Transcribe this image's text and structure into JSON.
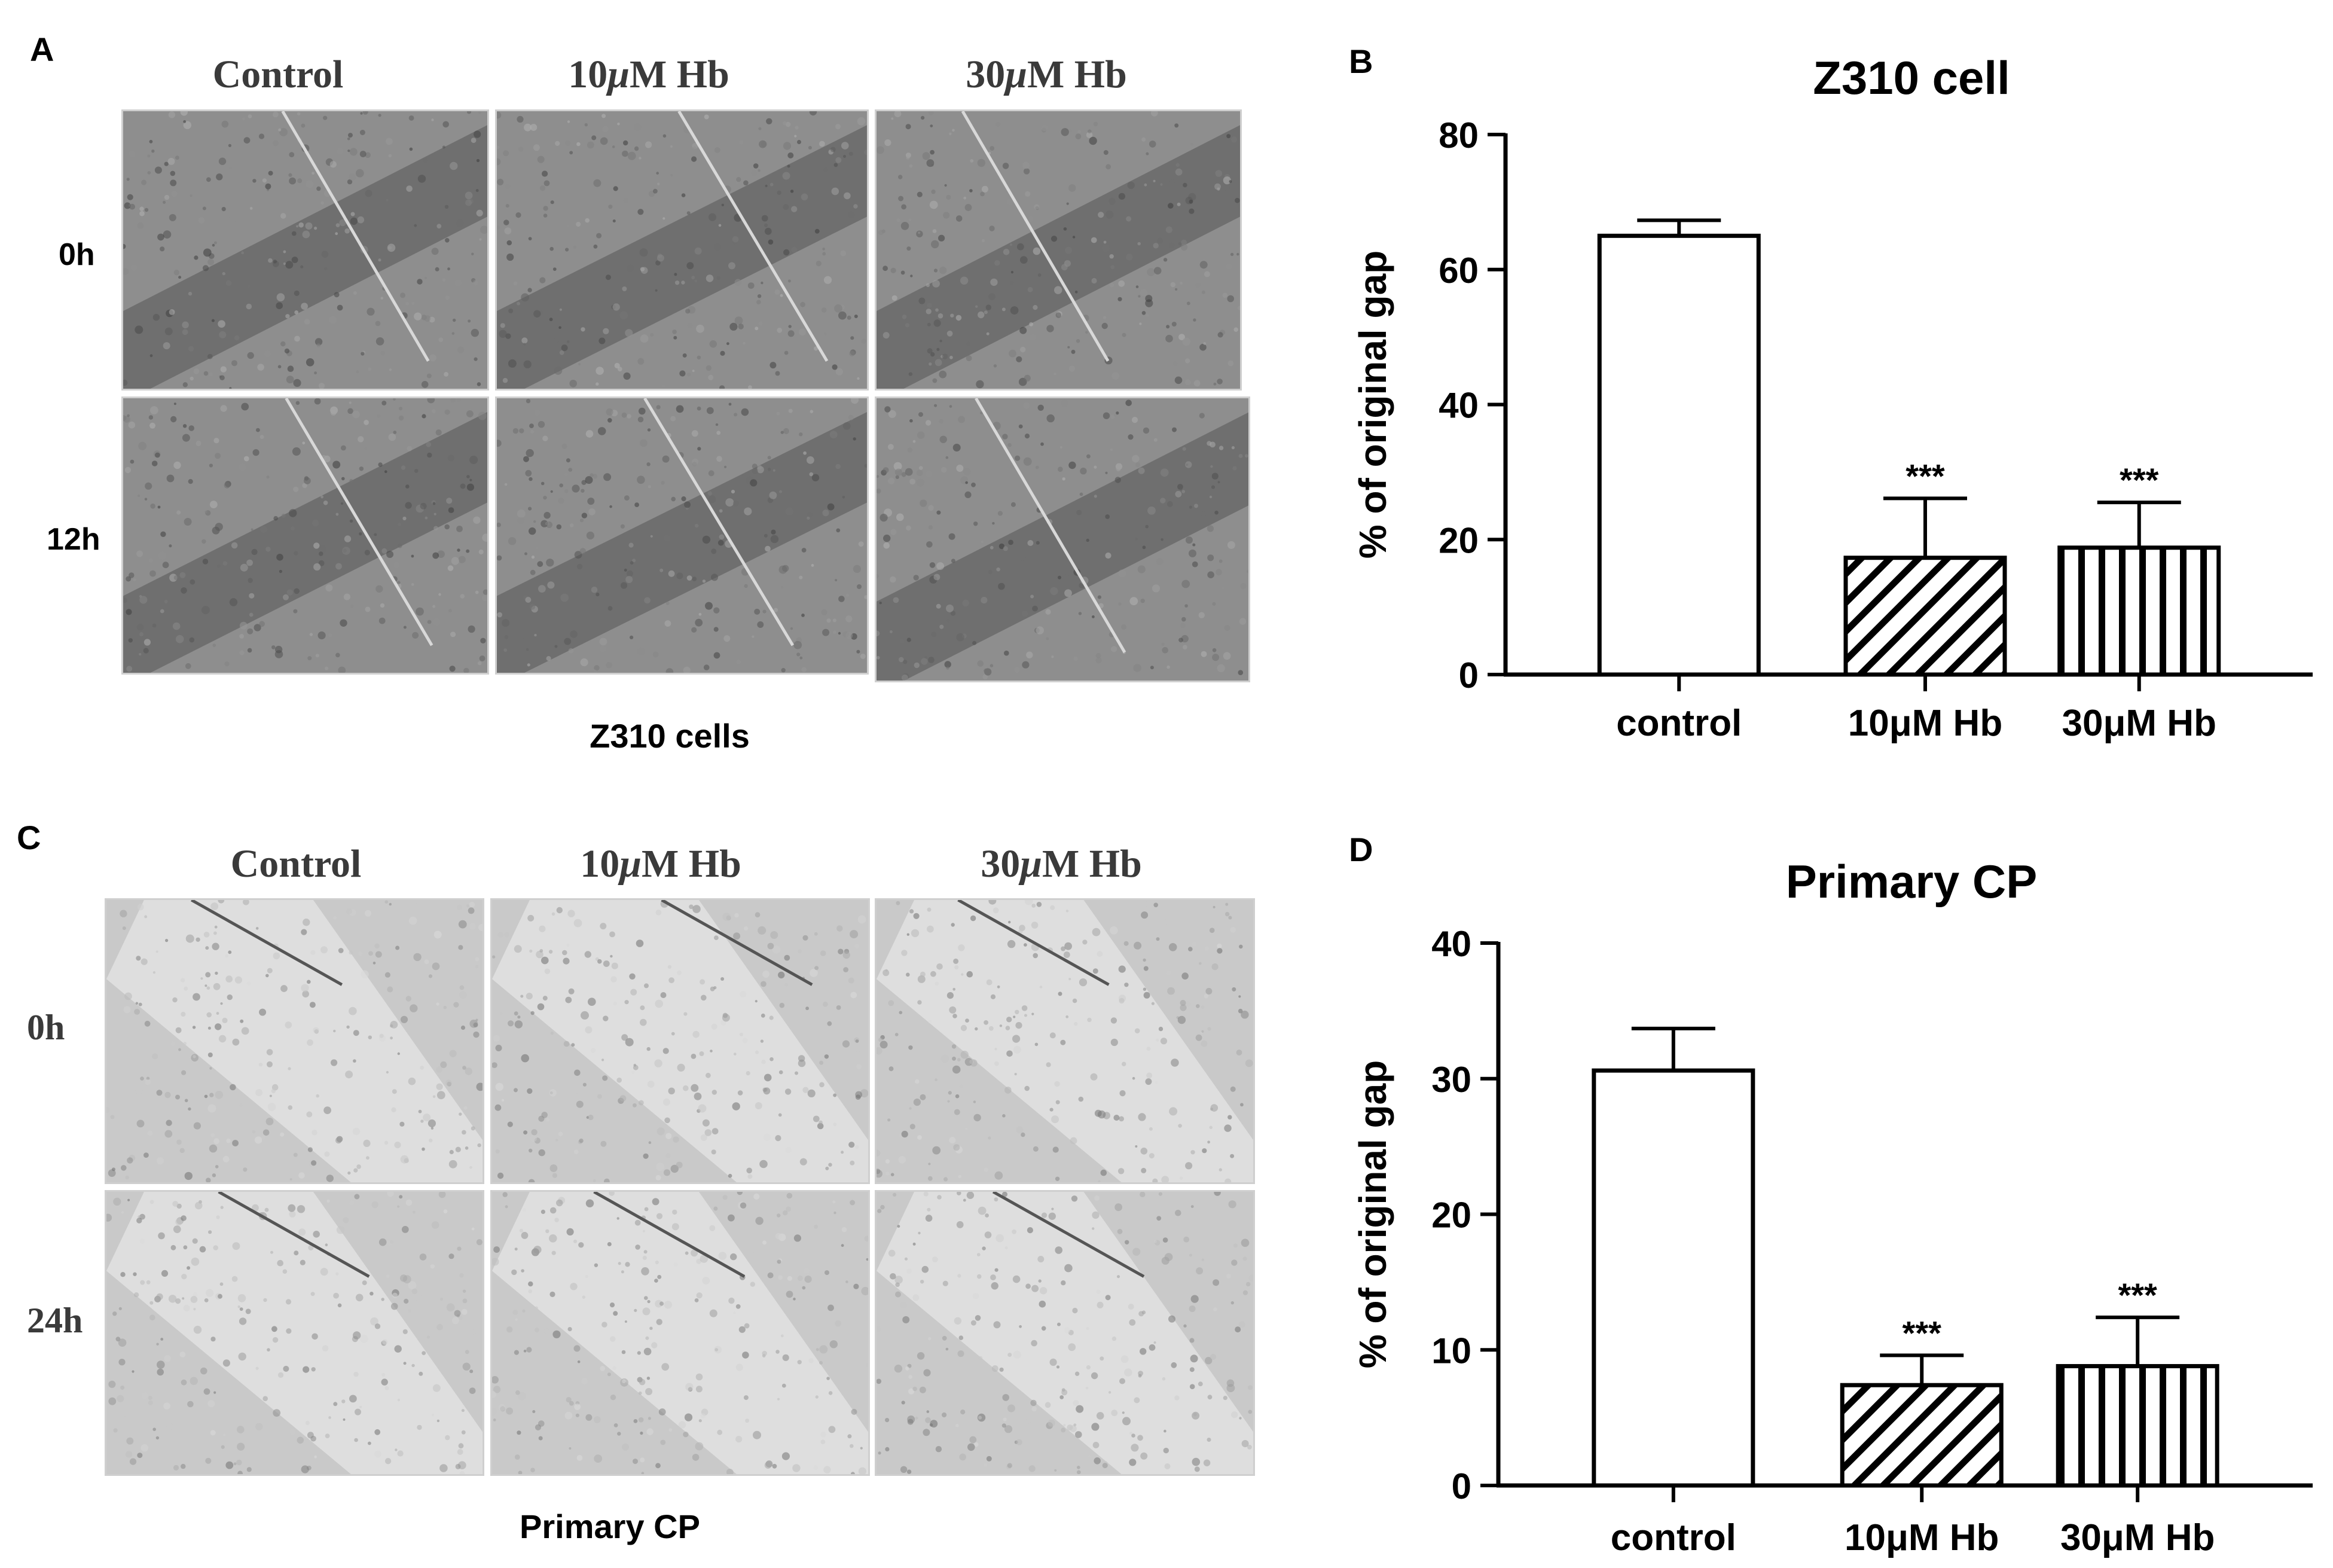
{
  "panels": {
    "A": {
      "letter": "A",
      "columns": [
        {
          "prefix": "Control",
          "italic": "",
          "suffix": ""
        },
        {
          "prefix": "10",
          "italic": "μ",
          "suffix": "M Hb"
        },
        {
          "prefix": "30",
          "italic": "μ",
          "suffix": "M Hb"
        }
      ],
      "rows": [
        "0h",
        "12h"
      ],
      "caption": "Z310 cells"
    },
    "C": {
      "letter": "C",
      "columns": [
        {
          "prefix": "Control",
          "italic": "",
          "suffix": ""
        },
        {
          "prefix": "10",
          "italic": "μ",
          "suffix": "M Hb"
        },
        {
          "prefix": "30",
          "italic": "μ",
          "suffix": "M Hb"
        }
      ],
      "rows": [
        "0h",
        "24h"
      ],
      "caption": "Primary CP"
    },
    "B": {
      "letter": "B"
    },
    "D": {
      "letter": "D"
    }
  },
  "chart_data": [
    {
      "type": "bar",
      "title": "Z310 cell",
      "ylabel": "% of original gap",
      "xlabel": "",
      "categories": [
        "control",
        "10μM Hb",
        "30μM Hb"
      ],
      "values": [
        65,
        17.3,
        18.8
      ],
      "errors": [
        2.3,
        8.8,
        6.7
      ],
      "significance": [
        "",
        "***",
        "***"
      ],
      "fill_patterns": [
        "none",
        "diagonal",
        "vertical"
      ],
      "ylim": [
        0,
        80
      ],
      "yticks": [
        0,
        20,
        40,
        60,
        80
      ],
      "grid": false,
      "color": "#000000"
    },
    {
      "type": "bar",
      "title": "Primary CP",
      "ylabel": "% of original gap",
      "xlabel": "",
      "categories": [
        "control",
        "10μM Hb",
        "30μM Hb"
      ],
      "values": [
        30.6,
        7.4,
        8.8
      ],
      "errors": [
        3.1,
        2.2,
        3.6
      ],
      "significance": [
        "",
        "***",
        "***"
      ],
      "fill_patterns": [
        "none",
        "diagonal",
        "vertical"
      ],
      "ylim": [
        0,
        40
      ],
      "yticks": [
        0,
        10,
        20,
        30,
        40
      ],
      "grid": false,
      "color": "#000000"
    }
  ]
}
